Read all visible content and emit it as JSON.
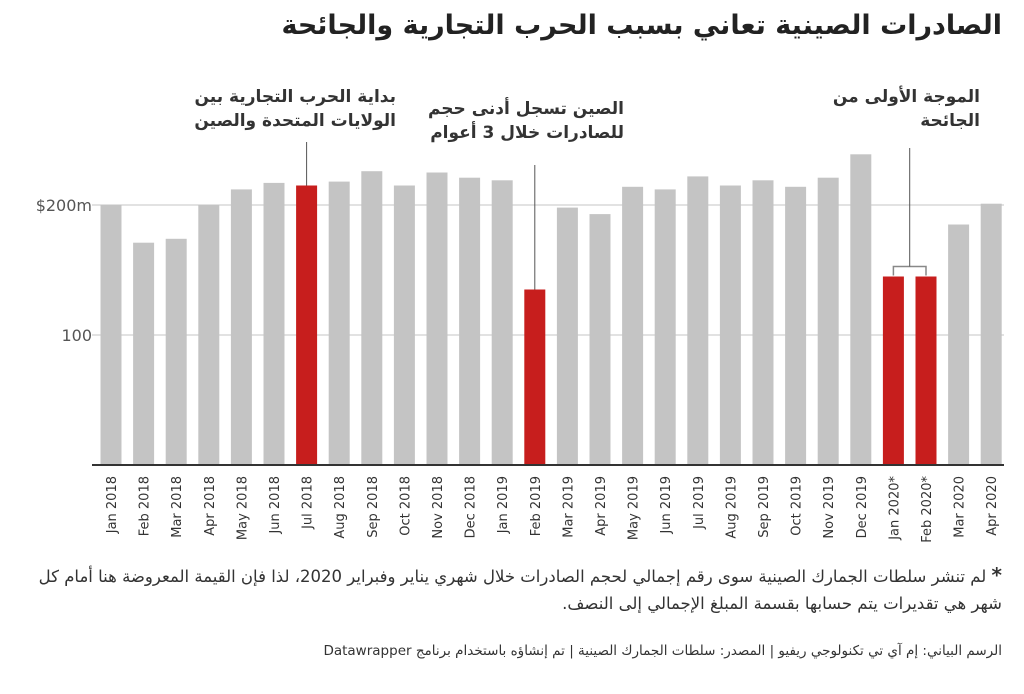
{
  "title": "الصادرات الصينية تعاني بسبب الحرب التجارية والجائحة",
  "chart_data": {
    "type": "bar",
    "title": "الصادرات الصينية تعاني بسبب الحرب التجارية والجائحة",
    "xlabel": "",
    "ylabel": "",
    "ylim": [
      0,
      250
    ],
    "yticks": [
      {
        "value": 100,
        "label": "100"
      },
      {
        "value": 200,
        "label": "$200m"
      }
    ],
    "grid": true,
    "categories": [
      "Jan 2018",
      "Feb 2018",
      "Mar 2018",
      "Apr 2018",
      "May 2018",
      "Jun 2018",
      "Jul 2018",
      "Aug 2018",
      "Sep 2018",
      "Oct 2018",
      "Nov 2018",
      "Dec 2018",
      "Jan 2019",
      "Feb 2019",
      "Mar 2019",
      "Apr 2019",
      "May 2019",
      "Jun 2019",
      "Jul 2019",
      "Aug 2019",
      "Sep 2019",
      "Oct 2019",
      "Nov 2019",
      "Dec 2019",
      "Jan 2020*",
      "Feb 2020*",
      "Mar 2020",
      "Apr 2020"
    ],
    "values": [
      200,
      171,
      174,
      200,
      212,
      217,
      215,
      218,
      226,
      215,
      225,
      221,
      219,
      135,
      198,
      193,
      214,
      212,
      222,
      215,
      219,
      214,
      221,
      239,
      145,
      145,
      185,
      201
    ],
    "highlighted": [
      6,
      13,
      24,
      25
    ],
    "colors": {
      "default": "#c4c4c4",
      "highlight": "#c71e1d"
    },
    "annotations": [
      {
        "lines": [
          "بداية الحرب التجارية بين",
          "الولايات المتحدة والصين"
        ],
        "target": [
          6
        ]
      },
      {
        "lines": [
          "الصين تسجل أدنى حجم",
          "للصادرات خلال 3 أعوام"
        ],
        "target": [
          13
        ]
      },
      {
        "lines": [
          "الموجة الأولى من",
          "الجائحة"
        ],
        "target": [
          24,
          25
        ]
      }
    ]
  },
  "footnote": {
    "star": "*",
    "text": "لم تنشر سلطات الجمارك الصينية سوى رقم إجمالي لحجم الصادرات خلال شهري يناير وفبراير 2020، لذا فإن القيمة المعروضة هنا أمام كل شهر هي تقديرات يتم حسابها بقسمة المبلغ الإجمالي إلى النصف."
  },
  "credit": "الرسم البياني: إم آي تي تكنولوجي ريفيو | المصدر: سلطات الجمارك الصينية | تم إنشاؤه باستخدام برنامج Datawrapper"
}
